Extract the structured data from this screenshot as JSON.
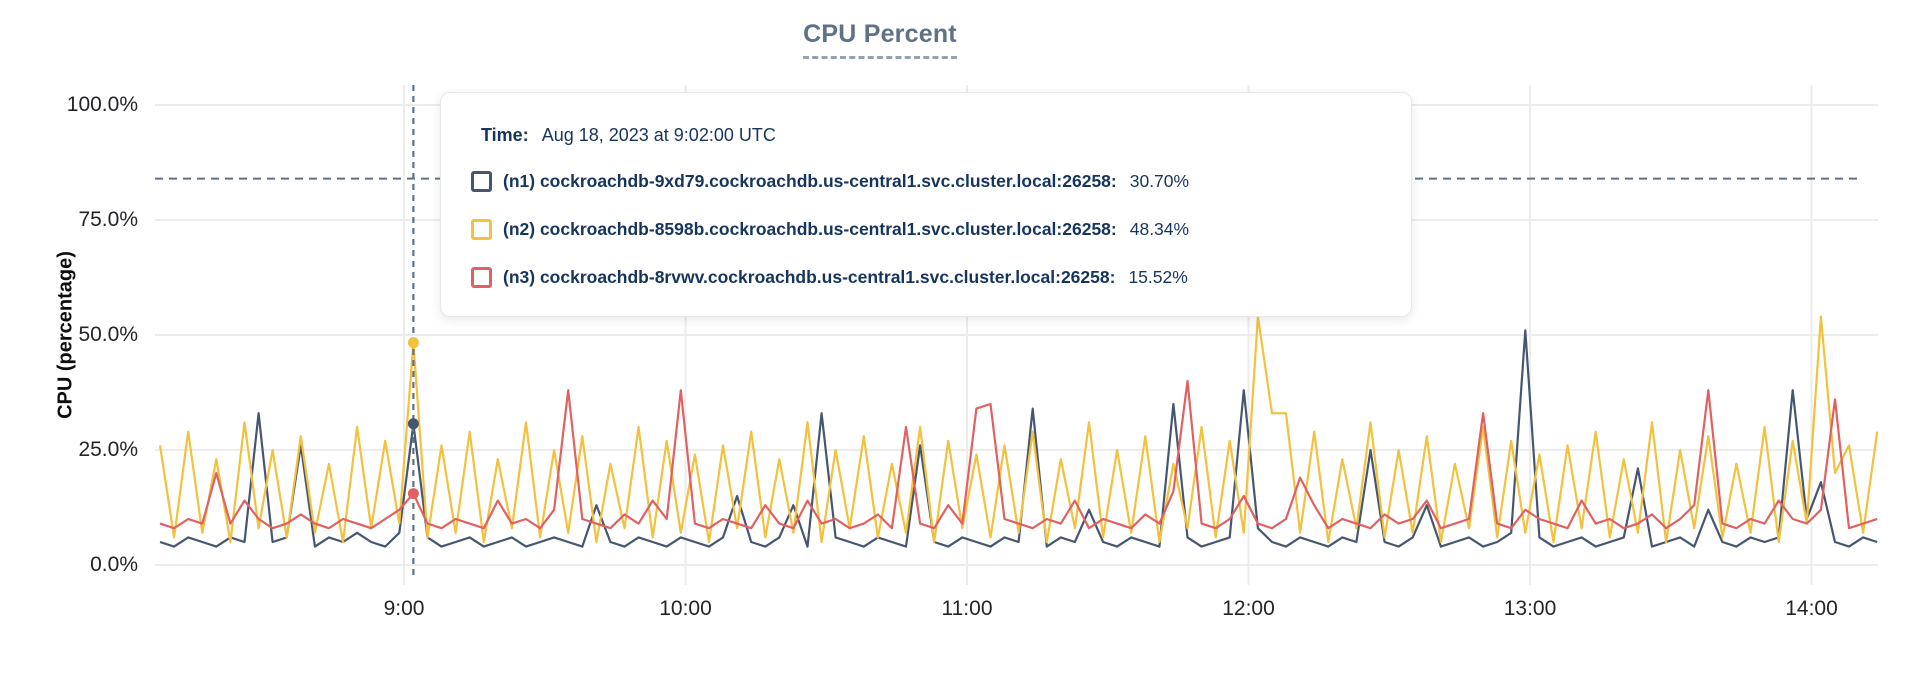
{
  "title": "CPU Percent",
  "y_axis": {
    "label": "CPU (percentage)"
  },
  "tooltip": {
    "time_label": "Time:",
    "time_value": "Aug 18, 2023 at 9:02:00 UTC",
    "series": [
      {
        "name": "(n1) cockroachdb-9xd79.cockroachdb.us-central1.svc.cluster.local:26258:",
        "value": "30.70%",
        "color": "#475670"
      },
      {
        "name": "(n2) cockroachdb-8598b.cockroachdb.us-central1.svc.cluster.local:26258:",
        "value": "48.34%",
        "color": "#f2c13d"
      },
      {
        "name": "(n3) cockroachdb-8rvwv.cockroachdb.us-central1.svc.cluster.local:26258:",
        "value": "15.52%",
        "color": "#e06161"
      }
    ]
  },
  "colors": {
    "grid": "#ececec",
    "dashed_guides": "#5f7186",
    "title": "#5e7186",
    "tooltip_text": "#16355c"
  },
  "chart_data": {
    "type": "line",
    "title": "CPU Percent",
    "xlabel": "",
    "ylabel": "CPU (percentage)",
    "ylim": [
      0,
      100
    ],
    "grid": true,
    "y_ticks": [
      {
        "v": 0,
        "label": "0.0%"
      },
      {
        "v": 25,
        "label": "25.0%"
      },
      {
        "v": 50,
        "label": "50.0%"
      },
      {
        "v": 75,
        "label": "75.0%"
      },
      {
        "v": 100,
        "label": "100.0%"
      }
    ],
    "x_unit": "minutes after 8:00 UTC",
    "x_ticks": [
      {
        "t": 60,
        "label": "9:00"
      },
      {
        "t": 120,
        "label": "10:00"
      },
      {
        "t": 180,
        "label": "11:00"
      },
      {
        "t": 240,
        "label": "12:00"
      },
      {
        "t": 300,
        "label": "13:00"
      },
      {
        "t": 360,
        "label": "14:00"
      }
    ],
    "threshold_percent": 84,
    "hover": {
      "t": 62,
      "time": "Aug 18, 2023 at 9:02:00 UTC",
      "values": [
        30.7,
        48.34,
        15.52
      ]
    },
    "t_start": 8,
    "t_step": 3,
    "series": [
      {
        "name": "(n1) cockroachdb-9xd79.cockroachdb.us-central1.svc.cluster.local:26258",
        "color": "#475670",
        "values": [
          5,
          4,
          6,
          5,
          4,
          6,
          5,
          33,
          5,
          6,
          26,
          4,
          6,
          5,
          7,
          5,
          4,
          7,
          30.7,
          6,
          4,
          5,
          6,
          4,
          5,
          6,
          4,
          5,
          6,
          5,
          4,
          13,
          5,
          4,
          6,
          5,
          4,
          6,
          5,
          4,
          6,
          15,
          5,
          4,
          6,
          13,
          4,
          33,
          6,
          5,
          4,
          6,
          5,
          4,
          26,
          5,
          4,
          6,
          5,
          4,
          6,
          5,
          34,
          4,
          6,
          5,
          12,
          5,
          4,
          6,
          5,
          4,
          35,
          6,
          4,
          5,
          6,
          38,
          8,
          5,
          4,
          6,
          5,
          4,
          6,
          5,
          25,
          5,
          4,
          6,
          13,
          4,
          5,
          6,
          4,
          5,
          7,
          51,
          6,
          4,
          5,
          6,
          4,
          5,
          6,
          21,
          4,
          5,
          6,
          4,
          12,
          5,
          4,
          6,
          5,
          6,
          38,
          10,
          18,
          5,
          4,
          6,
          5
        ]
      },
      {
        "name": "(n2) cockroachdb-8598b.cockroachdb.us-central1.svc.cluster.local:26258",
        "color": "#f2c13d",
        "values": [
          26,
          6,
          29,
          7,
          23,
          5,
          31,
          8,
          25,
          6,
          28,
          7,
          22,
          5,
          30,
          8,
          27,
          9,
          48.34,
          6,
          26,
          7,
          29,
          5,
          23,
          8,
          31,
          6,
          25,
          7,
          28,
          5,
          22,
          8,
          30,
          6,
          27,
          7,
          24,
          5,
          26,
          8,
          29,
          6,
          23,
          7,
          31,
          5,
          25,
          8,
          28,
          6,
          22,
          7,
          30,
          5,
          27,
          8,
          24,
          6,
          26,
          7,
          29,
          5,
          23,
          8,
          31,
          6,
          25,
          7,
          28,
          5,
          22,
          8,
          30,
          6,
          27,
          7,
          54,
          33,
          33,
          7,
          29,
          5,
          23,
          8,
          31,
          6,
          25,
          7,
          28,
          5,
          22,
          8,
          30,
          6,
          27,
          7,
          24,
          5,
          26,
          8,
          29,
          6,
          23,
          7,
          31,
          5,
          25,
          8,
          28,
          6,
          22,
          7,
          30,
          5,
          27,
          9,
          54,
          20,
          26,
          7,
          29
        ]
      },
      {
        "name": "(n3) cockroachdb-8rvwv.cockroachdb.us-central1.svc.cluster.local:26258",
        "color": "#e06161",
        "values": [
          9,
          8,
          10,
          9,
          20,
          9,
          14,
          10,
          8,
          9,
          11,
          9,
          8,
          10,
          9,
          8,
          10,
          12,
          15.52,
          9,
          8,
          10,
          9,
          8,
          14,
          9,
          10,
          8,
          12,
          38,
          10,
          9,
          8,
          11,
          9,
          14,
          10,
          38,
          9,
          8,
          10,
          9,
          8,
          13,
          9,
          8,
          14,
          9,
          10,
          8,
          9,
          11,
          8,
          30,
          9,
          8,
          13,
          9,
          34,
          35,
          10,
          9,
          8,
          10,
          9,
          14,
          8,
          10,
          9,
          8,
          11,
          9,
          16,
          40,
          9,
          8,
          10,
          15,
          9,
          8,
          10,
          19,
          13,
          8,
          10,
          9,
          8,
          11,
          9,
          10,
          14,
          8,
          9,
          10,
          33,
          9,
          8,
          12,
          10,
          9,
          8,
          14,
          9,
          10,
          8,
          9,
          11,
          8,
          10,
          13,
          38,
          9,
          8,
          10,
          9,
          14,
          10,
          9,
          12,
          36,
          8,
          9,
          10
        ]
      }
    ]
  }
}
